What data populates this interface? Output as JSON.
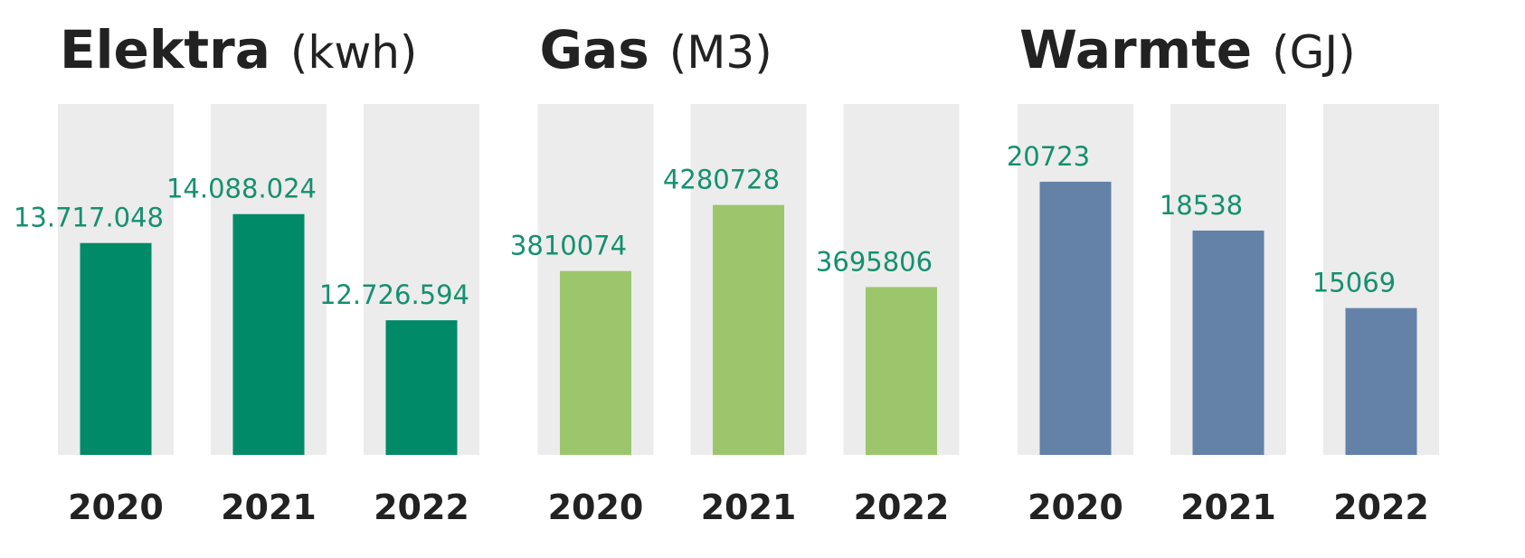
{
  "chart_data": [
    {
      "type": "bar",
      "title": "Elektra",
      "unit": "(kwh)",
      "categories": [
        "2020",
        "2021",
        "2022"
      ],
      "values": [
        13717048,
        14088024,
        12726594
      ],
      "value_labels": [
        "13.717.048",
        "14.088.024",
        "12.726.594"
      ],
      "color": "#008a68",
      "ylim": [
        11000000,
        15500000
      ]
    },
    {
      "type": "bar",
      "title": "Gas",
      "unit": "(M3)",
      "categories": [
        "2020",
        "2021",
        "2022"
      ],
      "values": [
        3810074,
        4280728,
        3695806
      ],
      "color": "#9cc66c",
      "ylim": [
        2500000,
        5000000
      ]
    },
    {
      "type": "bar",
      "title": "Warmte",
      "unit": "(GJ)",
      "categories": [
        "2020",
        "2021",
        "2022"
      ],
      "values": [
        20723,
        18538,
        15069
      ],
      "color": "#6482a8",
      "ylim": [
        8500,
        24200
      ]
    }
  ]
}
